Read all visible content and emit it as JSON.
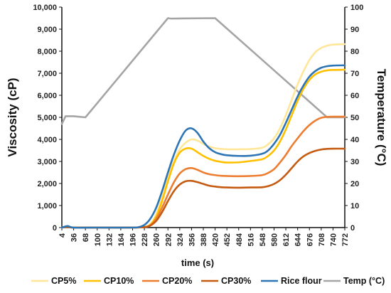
{
  "chart_data": {
    "type": "line",
    "xlabel": "time (s)",
    "ylabel_left": "Viscosity (cP)",
    "ylabel_right": "Temperature (°C)",
    "x_ticks": [
      "4",
      "36",
      "68",
      "100",
      "132",
      "164",
      "196",
      "228",
      "260",
      "292",
      "324",
      "356",
      "388",
      "420",
      "452",
      "484",
      "516",
      "548",
      "580",
      "612",
      "644",
      "676",
      "708",
      "740",
      "772"
    ],
    "y_left_ticks": [
      "0",
      "1,000",
      "2,000",
      "3,000",
      "4,000",
      "5,000",
      "6,000",
      "7,000",
      "8,000",
      "9,000",
      "10,000"
    ],
    "y_right_ticks": [
      "0",
      "10",
      "20",
      "30",
      "40",
      "50",
      "60",
      "70",
      "80",
      "90",
      "100"
    ],
    "xlim": [
      4,
      772
    ],
    "ylim_left": [
      0,
      10000
    ],
    "ylim_right": [
      0,
      100
    ],
    "grid": false,
    "legend_position": "bottom",
    "series": [
      {
        "name": "CP5%",
        "color": "#FFE699",
        "axis": "left",
        "points": [
          [
            4,
            0
          ],
          [
            20,
            60
          ],
          [
            36,
            0
          ],
          [
            100,
            0
          ],
          [
            196,
            0
          ],
          [
            228,
            30
          ],
          [
            244,
            150
          ],
          [
            260,
            600
          ],
          [
            276,
            1400
          ],
          [
            292,
            2300
          ],
          [
            308,
            3000
          ],
          [
            324,
            3550
          ],
          [
            340,
            3850
          ],
          [
            356,
            4000
          ],
          [
            372,
            3950
          ],
          [
            388,
            3800
          ],
          [
            404,
            3680
          ],
          [
            420,
            3600
          ],
          [
            436,
            3570
          ],
          [
            452,
            3550
          ],
          [
            484,
            3550
          ],
          [
            516,
            3560
          ],
          [
            548,
            3620
          ],
          [
            564,
            3780
          ],
          [
            580,
            4050
          ],
          [
            596,
            4500
          ],
          [
            612,
            5100
          ],
          [
            628,
            5800
          ],
          [
            644,
            6500
          ],
          [
            660,
            7100
          ],
          [
            676,
            7600
          ],
          [
            692,
            7950
          ],
          [
            708,
            8150
          ],
          [
            724,
            8250
          ],
          [
            740,
            8300
          ],
          [
            772,
            8320
          ]
        ]
      },
      {
        "name": "CP10%",
        "color": "#FFC000",
        "axis": "left",
        "points": [
          [
            4,
            0
          ],
          [
            20,
            50
          ],
          [
            36,
            0
          ],
          [
            100,
            0
          ],
          [
            196,
            0
          ],
          [
            228,
            30
          ],
          [
            244,
            130
          ],
          [
            260,
            500
          ],
          [
            276,
            1200
          ],
          [
            292,
            2100
          ],
          [
            308,
            2900
          ],
          [
            324,
            3400
          ],
          [
            340,
            3580
          ],
          [
            356,
            3580
          ],
          [
            372,
            3420
          ],
          [
            388,
            3250
          ],
          [
            404,
            3120
          ],
          [
            420,
            3030
          ],
          [
            436,
            2980
          ],
          [
            452,
            2950
          ],
          [
            484,
            2960
          ],
          [
            516,
            3020
          ],
          [
            548,
            3100
          ],
          [
            564,
            3250
          ],
          [
            580,
            3500
          ],
          [
            596,
            3900
          ],
          [
            612,
            4450
          ],
          [
            628,
            5100
          ],
          [
            644,
            5750
          ],
          [
            660,
            6300
          ],
          [
            676,
            6700
          ],
          [
            692,
            6950
          ],
          [
            708,
            7070
          ],
          [
            724,
            7130
          ],
          [
            740,
            7150
          ],
          [
            772,
            7160
          ]
        ]
      },
      {
        "name": "CP20%",
        "color": "#ED7D31",
        "axis": "left",
        "points": [
          [
            4,
            0
          ],
          [
            20,
            40
          ],
          [
            36,
            0
          ],
          [
            100,
            0
          ],
          [
            196,
            0
          ],
          [
            228,
            20
          ],
          [
            244,
            100
          ],
          [
            260,
            400
          ],
          [
            276,
            900
          ],
          [
            292,
            1500
          ],
          [
            308,
            2050
          ],
          [
            324,
            2450
          ],
          [
            340,
            2650
          ],
          [
            356,
            2700
          ],
          [
            372,
            2620
          ],
          [
            388,
            2500
          ],
          [
            404,
            2420
          ],
          [
            420,
            2380
          ],
          [
            436,
            2350
          ],
          [
            452,
            2340
          ],
          [
            484,
            2330
          ],
          [
            516,
            2340
          ],
          [
            548,
            2380
          ],
          [
            564,
            2480
          ],
          [
            580,
            2650
          ],
          [
            596,
            2950
          ],
          [
            612,
            3300
          ],
          [
            628,
            3700
          ],
          [
            644,
            4050
          ],
          [
            660,
            4380
          ],
          [
            676,
            4650
          ],
          [
            692,
            4850
          ],
          [
            708,
            4980
          ],
          [
            724,
            5020
          ],
          [
            740,
            5030
          ],
          [
            772,
            5030
          ]
        ]
      },
      {
        "name": "CP30%",
        "color": "#C55A11",
        "axis": "left",
        "points": [
          [
            4,
            0
          ],
          [
            20,
            30
          ],
          [
            36,
            0
          ],
          [
            100,
            0
          ],
          [
            196,
            0
          ],
          [
            228,
            20
          ],
          [
            244,
            90
          ],
          [
            260,
            300
          ],
          [
            276,
            700
          ],
          [
            292,
            1200
          ],
          [
            308,
            1650
          ],
          [
            324,
            1950
          ],
          [
            340,
            2100
          ],
          [
            356,
            2120
          ],
          [
            372,
            2060
          ],
          [
            388,
            1980
          ],
          [
            404,
            1900
          ],
          [
            420,
            1860
          ],
          [
            436,
            1830
          ],
          [
            452,
            1820
          ],
          [
            484,
            1810
          ],
          [
            516,
            1820
          ],
          [
            548,
            1830
          ],
          [
            564,
            1880
          ],
          [
            580,
            1980
          ],
          [
            596,
            2150
          ],
          [
            612,
            2400
          ],
          [
            628,
            2700
          ],
          [
            644,
            3000
          ],
          [
            660,
            3230
          ],
          [
            676,
            3380
          ],
          [
            692,
            3480
          ],
          [
            708,
            3540
          ],
          [
            724,
            3570
          ],
          [
            740,
            3580
          ],
          [
            772,
            3580
          ]
        ]
      },
      {
        "name": "Rice flour",
        "color": "#2E75B6",
        "axis": "left",
        "points": [
          [
            4,
            0
          ],
          [
            20,
            70
          ],
          [
            36,
            0
          ],
          [
            100,
            0
          ],
          [
            196,
            0
          ],
          [
            212,
            20
          ],
          [
            228,
            120
          ],
          [
            244,
            400
          ],
          [
            260,
            900
          ],
          [
            276,
            1650
          ],
          [
            292,
            2500
          ],
          [
            308,
            3300
          ],
          [
            324,
            3950
          ],
          [
            340,
            4400
          ],
          [
            356,
            4500
          ],
          [
            372,
            4300
          ],
          [
            388,
            3900
          ],
          [
            404,
            3600
          ],
          [
            420,
            3420
          ],
          [
            436,
            3330
          ],
          [
            452,
            3280
          ],
          [
            484,
            3250
          ],
          [
            516,
            3260
          ],
          [
            548,
            3350
          ],
          [
            564,
            3500
          ],
          [
            580,
            3800
          ],
          [
            596,
            4200
          ],
          [
            612,
            4750
          ],
          [
            628,
            5350
          ],
          [
            644,
            5950
          ],
          [
            660,
            6450
          ],
          [
            676,
            6850
          ],
          [
            692,
            7100
          ],
          [
            708,
            7250
          ],
          [
            724,
            7320
          ],
          [
            740,
            7350
          ],
          [
            772,
            7360
          ]
        ]
      },
      {
        "name": "Temp (°C)",
        "color": "#A5A5A5",
        "axis": "right",
        "points": [
          [
            4,
            47
          ],
          [
            14,
            50.5
          ],
          [
            36,
            50.5
          ],
          [
            68,
            50
          ],
          [
            292,
            95
          ],
          [
            300,
            94.8
          ],
          [
            420,
            95
          ],
          [
            724,
            50
          ],
          [
            772,
            50
          ]
        ]
      }
    ]
  }
}
